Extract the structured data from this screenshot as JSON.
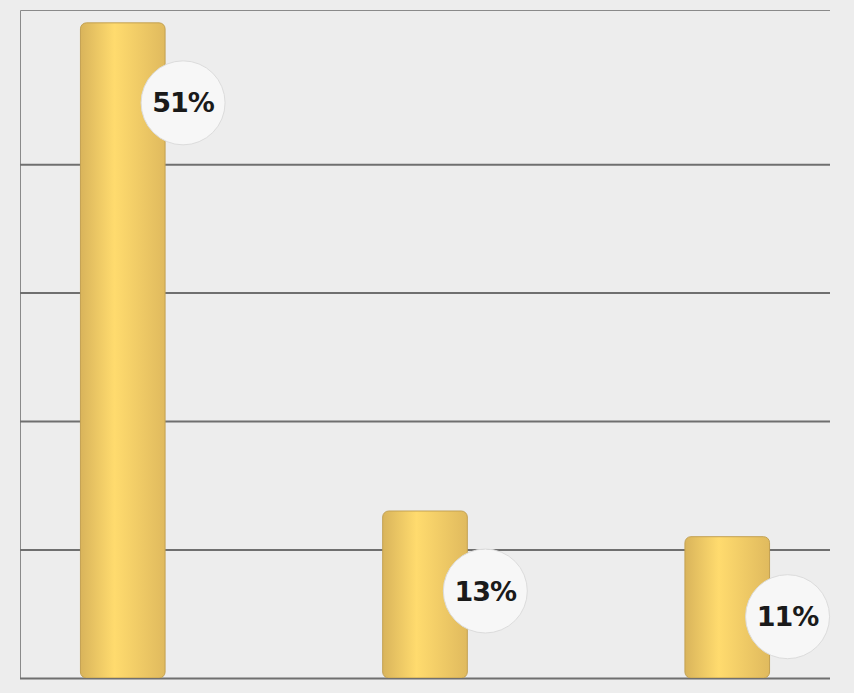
{
  "chart_data": {
    "type": "bar",
    "categories": [
      null,
      null,
      null
    ],
    "values": [
      51,
      13,
      11
    ],
    "value_labels": [
      "51%",
      "13%",
      "11%"
    ],
    "data_labels": true,
    "color": "#f1c865",
    "ylim": [
      0,
      52
    ],
    "yticks": [
      0,
      10,
      20,
      30,
      40
    ],
    "grid": true,
    "tick_labels": false
  }
}
